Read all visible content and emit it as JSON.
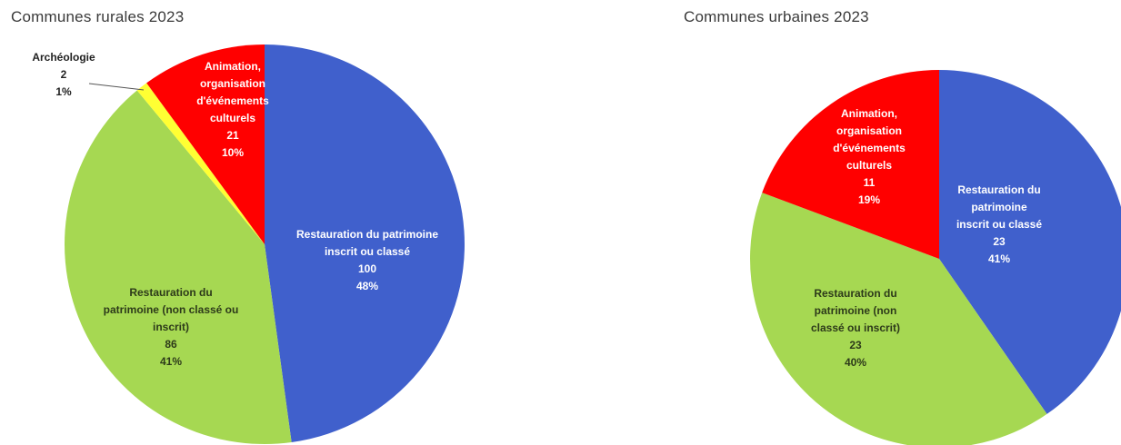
{
  "chart_data": [
    {
      "type": "pie",
      "title": "Communes rurales 2023",
      "start_angle_deg": 0,
      "direction": "clockwise",
      "slices": [
        {
          "label": "Restauration du patrimoine inscrit ou classé",
          "value": 100,
          "percent": "48%",
          "color": "#4060CC",
          "text_color": "#ffffff",
          "label_lines": [
            "Restauration du patrimoine",
            "inscrit ou classé"
          ]
        },
        {
          "label": "Restauration du patrimoine (non classé ou inscrit)",
          "value": 86,
          "percent": "41%",
          "color": "#A6D852",
          "text_color": "#2d3a1a",
          "label_lines": [
            "Restauration du",
            "patrimoine (non classé ou",
            "inscrit)"
          ]
        },
        {
          "label": "Archéologie",
          "value": 2,
          "percent": "1%",
          "color": "#FFFF33",
          "text_color": "#222222",
          "label_lines": [
            "Archéologie"
          ]
        },
        {
          "label": "Animation, organisation d'événements culturels",
          "value": 21,
          "percent": "10%",
          "color": "#FF0000",
          "text_color": "#ffffff",
          "label_lines": [
            "Animation,",
            "organisation",
            "d'événements",
            "culturels"
          ]
        }
      ]
    },
    {
      "type": "pie",
      "title": "Communes urbaines 2023",
      "start_angle_deg": 0,
      "direction": "clockwise",
      "slices": [
        {
          "label": "Restauration du patrimoine inscrit ou classé",
          "value": 23,
          "percent": "41%",
          "color": "#4060CC",
          "text_color": "#ffffff",
          "label_lines": [
            "Restauration du",
            "patrimoine",
            "inscrit ou classé"
          ]
        },
        {
          "label": "Restauration du patrimoine (non classé ou inscrit)",
          "value": 23,
          "percent": "40%",
          "color": "#A6D852",
          "text_color": "#2d3a1a",
          "label_lines": [
            "Restauration du",
            "patrimoine (non",
            "classé ou inscrit)"
          ]
        },
        {
          "label": "Animation, organisation d'événements culturels",
          "value": 11,
          "percent": "19%",
          "color": "#FF0000",
          "text_color": "#ffffff",
          "label_lines": [
            "Animation,",
            "organisation",
            "d'événements",
            "culturels"
          ]
        }
      ]
    }
  ]
}
